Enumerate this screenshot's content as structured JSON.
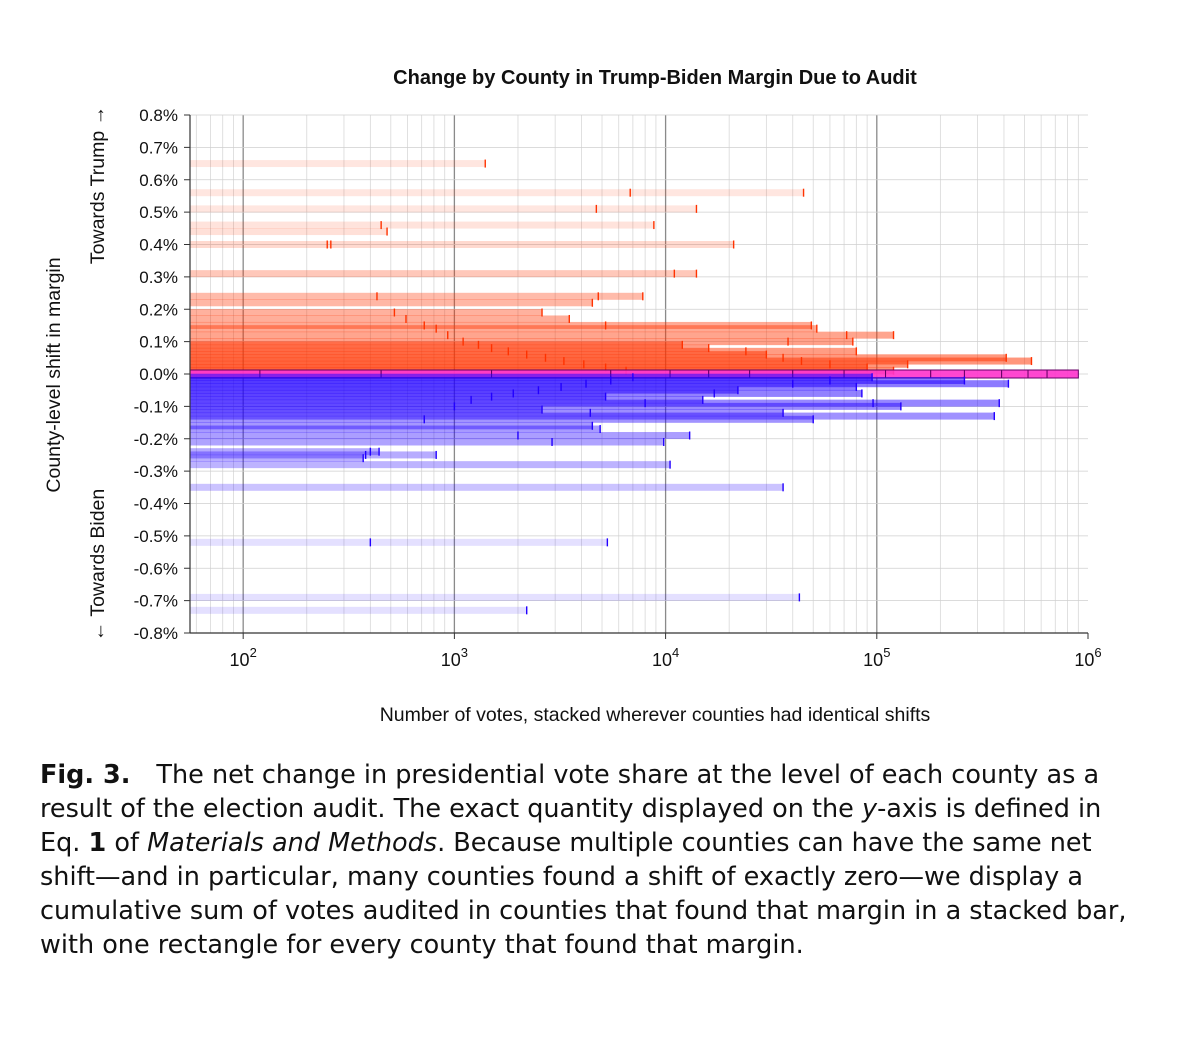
{
  "chart_data": {
    "type": "bar",
    "orientation": "horizontal",
    "title": "Change by County in Trump-Biden Margin Due to Audit",
    "xlabel": "Number of votes, stacked wherever counties had identical shifts",
    "ylabel": "County-level shift in margin",
    "ylabel_top": "Towards Trump →",
    "ylabel_bottom": "← Towards Biden",
    "x_scale": "log",
    "xlim": [
      56,
      1000000
    ],
    "x_ticks": [
      {
        "base": "10",
        "exp": "2",
        "value": 100
      },
      {
        "base": "10",
        "exp": "3",
        "value": 1000
      },
      {
        "base": "10",
        "exp": "4",
        "value": 10000
      },
      {
        "base": "10",
        "exp": "5",
        "value": 100000
      },
      {
        "base": "10",
        "exp": "6",
        "value": 1000000
      }
    ],
    "ylim": [
      -0.8,
      0.8
    ],
    "y_ticks": [
      "0.8%",
      "0.7%",
      "0.6%",
      "0.5%",
      "0.4%",
      "0.3%",
      "0.2%",
      "0.1%",
      "0.0%",
      "-0.1%",
      "-0.2%",
      "-0.3%",
      "-0.4%",
      "-0.5%",
      "-0.6%",
      "-0.7%",
      "-0.8%"
    ],
    "y_tick_values": [
      0.8,
      0.7,
      0.6,
      0.5,
      0.4,
      0.3,
      0.2,
      0.1,
      0.0,
      -0.1,
      -0.2,
      -0.3,
      -0.4,
      -0.5,
      -0.6,
      -0.7,
      -0.8
    ],
    "grid": true,
    "colors": {
      "trump": "#ff3300",
      "biden": "#2200ff",
      "zero": "#ff33cc"
    },
    "series": [
      {
        "color": "#ff3300",
        "bars": [
          {
            "y": 0.65,
            "x": [
              1400
            ]
          },
          {
            "y": 0.56,
            "x": [
              6800,
              45000
            ]
          },
          {
            "y": 0.51,
            "x": [
              4700,
              14000
            ]
          },
          {
            "y": 0.46,
            "x": [
              450,
              8800
            ]
          },
          {
            "y": 0.44,
            "x": [
              480
            ]
          },
          {
            "y": 0.4,
            "x": [
              250,
              260,
              21000
            ]
          },
          {
            "y": 0.31,
            "x": [
              11000,
              14000
            ]
          },
          {
            "y": 0.24,
            "x": [
              430,
              4800,
              7800
            ]
          },
          {
            "y": 0.22,
            "x": [
              4500
            ]
          },
          {
            "y": 0.19,
            "x": [
              520,
              2600
            ]
          },
          {
            "y": 0.17,
            "x": [
              590,
              3500
            ]
          },
          {
            "y": 0.15,
            "x": [
              720,
              5200,
              49000
            ]
          },
          {
            "y": 0.14,
            "x": [
              820,
              52000
            ]
          },
          {
            "y": 0.12,
            "x": [
              930,
              72000,
              120000
            ]
          },
          {
            "y": 0.1,
            "x": [
              1100,
              38000,
              77000
            ]
          },
          {
            "y": 0.09,
            "x": [
              1300,
              12000
            ]
          },
          {
            "y": 0.08,
            "x": [
              1500,
              16000
            ]
          },
          {
            "y": 0.07,
            "x": [
              1800,
              24000,
              80000
            ]
          },
          {
            "y": 0.06,
            "x": [
              2200,
              30000
            ]
          },
          {
            "y": 0.05,
            "x": [
              2700,
              36000,
              410000
            ]
          },
          {
            "y": 0.04,
            "x": [
              3300,
              44000,
              540000
            ]
          },
          {
            "y": 0.03,
            "x": [
              4100,
              60000,
              140000
            ]
          },
          {
            "y": 0.02,
            "x": [
              5200,
              90000
            ]
          },
          {
            "y": 0.01,
            "x": [
              6500,
              120000
            ]
          }
        ]
      },
      {
        "color": "#ff33cc",
        "bars": [
          {
            "y": 0.0,
            "x": [
              120,
              450,
              1500,
              5500,
              10500,
              16000,
              25000,
              40000,
              70000,
              110000,
              180000,
              260000,
              390000,
              520000,
              640000,
              900000
            ]
          }
        ]
      },
      {
        "color": "#2200ff",
        "bars": [
          {
            "y": -0.01,
            "x": [
              7000,
              95000
            ]
          },
          {
            "y": -0.02,
            "x": [
              5500,
              60000,
              260000
            ]
          },
          {
            "y": -0.03,
            "x": [
              4200,
              40000,
              420000
            ]
          },
          {
            "y": -0.04,
            "x": [
              3200,
              80000
            ]
          },
          {
            "y": -0.05,
            "x": [
              2500,
              22000
            ]
          },
          {
            "y": -0.06,
            "x": [
              1900,
              17000,
              85000
            ]
          },
          {
            "y": -0.07,
            "x": [
              1500,
              5200
            ]
          },
          {
            "y": -0.08,
            "x": [
              1200,
              15000
            ]
          },
          {
            "y": -0.09,
            "x": [
              8000,
              96000,
              380000
            ]
          },
          {
            "y": -0.1,
            "x": [
              1000,
              130000
            ]
          },
          {
            "y": -0.11,
            "x": [
              2600
            ]
          },
          {
            "y": -0.12,
            "x": [
              4400,
              36000
            ]
          },
          {
            "y": -0.13,
            "x": [
              360000
            ]
          },
          {
            "y": -0.14,
            "x": [
              720,
              50000
            ]
          },
          {
            "y": -0.16,
            "x": [
              4500
            ]
          },
          {
            "y": -0.17,
            "x": [
              4900
            ]
          },
          {
            "y": -0.19,
            "x": [
              2000,
              13000
            ]
          },
          {
            "y": -0.21,
            "x": [
              2900,
              9800
            ]
          },
          {
            "y": -0.24,
            "x": [
              400,
              440
            ]
          },
          {
            "y": -0.25,
            "x": [
              380,
              820
            ]
          },
          {
            "y": -0.26,
            "x": [
              370
            ]
          },
          {
            "y": -0.28,
            "x": [
              10500
            ]
          },
          {
            "y": -0.35,
            "x": [
              36000
            ]
          },
          {
            "y": -0.52,
            "x": [
              400,
              5300
            ]
          },
          {
            "y": -0.69,
            "x": [
              43000
            ]
          },
          {
            "y": -0.73,
            "x": [
              2200
            ]
          }
        ]
      }
    ]
  },
  "caption": {
    "label": "Fig. 3.",
    "part1": "The net change in presidential vote share at the level of each county as a result of the election audit. The exact quantity displayed on the ",
    "axis_word": "y",
    "part2": "-axis is defined in Eq. ",
    "eq_num": "1",
    "part3": " of ",
    "materials": "Materials and Methods",
    "part4": ". Because multiple counties can have the same net shift—and in particular, many counties found a shift of exactly zero—we display a cumulative sum of votes audited in counties that found that margin in a stacked bar, with one rectangle for every county that found that margin."
  }
}
